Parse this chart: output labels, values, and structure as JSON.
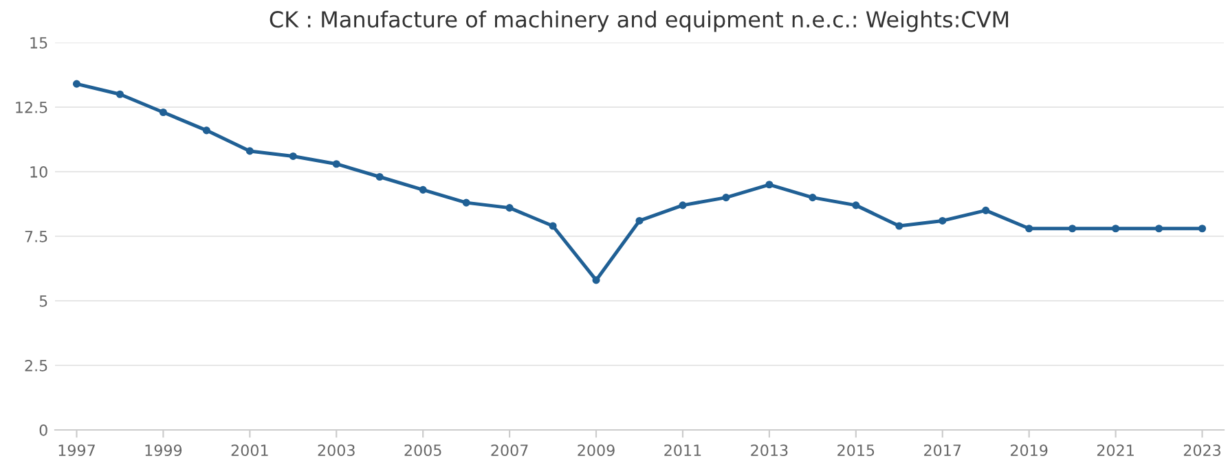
{
  "chart_data": {
    "type": "line",
    "title": "CK : Manufacture of machinery and equipment n.e.c.: Weights:CVM",
    "x": [
      1997,
      1998,
      1999,
      2000,
      2001,
      2002,
      2003,
      2004,
      2005,
      2006,
      2007,
      2008,
      2009,
      2010,
      2011,
      2012,
      2013,
      2014,
      2015,
      2016,
      2017,
      2018,
      2019,
      2020,
      2021,
      2022,
      2023
    ],
    "series": [
      {
        "color": "#206095",
        "values": [
          13.4,
          13.0,
          12.3,
          11.6,
          10.8,
          10.6,
          10.3,
          9.8,
          9.3,
          8.8,
          8.6,
          7.9,
          5.8,
          8.1,
          8.7,
          9.0,
          9.5,
          9.0,
          8.7,
          7.9,
          8.1,
          8.5,
          7.8,
          7.8,
          7.8,
          7.8,
          7.8
        ]
      }
    ],
    "xlim": [
      1996.5,
      2023.5
    ],
    "xticks": [
      1997,
      1999,
      2001,
      2003,
      2005,
      2007,
      2009,
      2011,
      2013,
      2015,
      2017,
      2019,
      2021,
      2023
    ],
    "ylim": [
      0,
      15
    ],
    "yticks": [
      0,
      2.5,
      5,
      7.5,
      10,
      12.5,
      15
    ],
    "grid": "y",
    "legend": false,
    "marker": "circle",
    "line_style": "solid"
  }
}
